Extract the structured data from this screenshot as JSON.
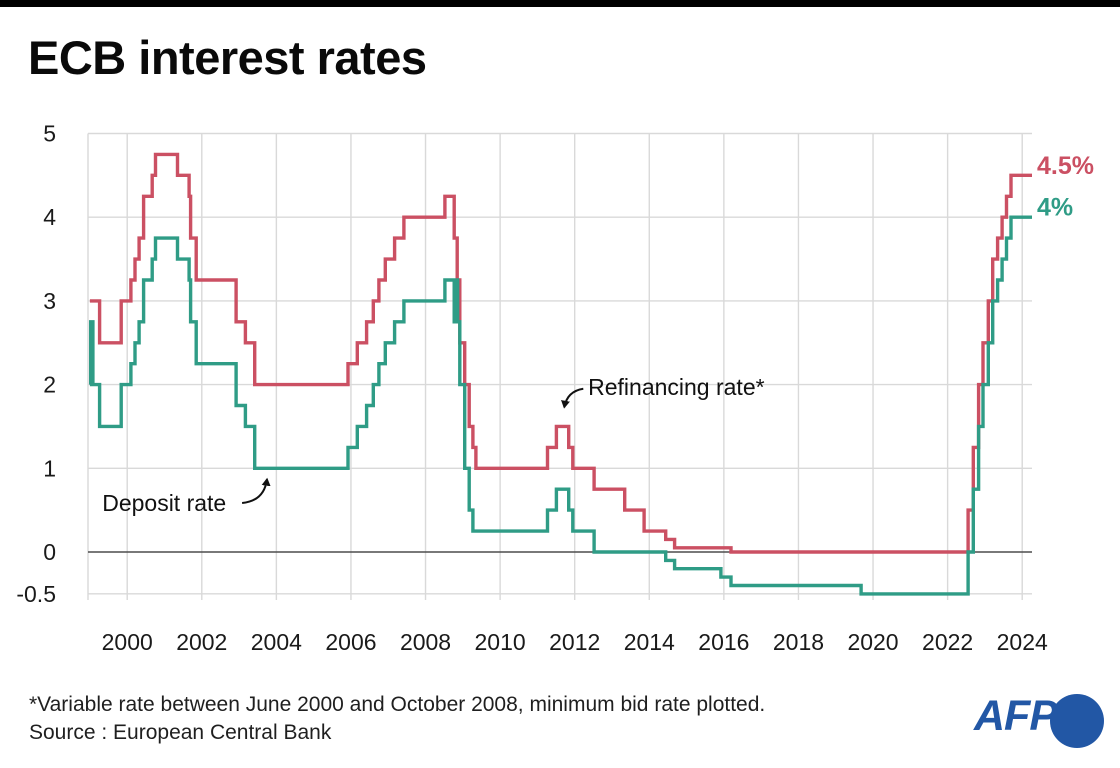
{
  "page": {
    "title": "ECB interest rates"
  },
  "footer": {
    "footnote": "*Variable rate between June 2000 and October 2008, minimum bid rate plotted.",
    "source": "Source : European Central Bank",
    "logo_text": "AFP"
  },
  "colors": {
    "refinancing_line": "#cb5063",
    "deposit_line": "#2f9c86",
    "grid": "#d9d9d9",
    "zero_line": "#4d4d4d",
    "axis_text": "#1a1a1a",
    "annotation_text": "#111111",
    "afp_blue": "#2257a5",
    "top_bar": "#000000"
  },
  "chart_data": {
    "type": "line",
    "step": true,
    "title": "ECB interest rates",
    "x_ticks": [
      2000,
      2002,
      2004,
      2006,
      2008,
      2010,
      2012,
      2014,
      2016,
      2018,
      2020,
      2022,
      2024
    ],
    "y_ticks": [
      5,
      4,
      3,
      2,
      1,
      0,
      -0.5
    ],
    "xlim": [
      1998.95,
      2024.3
    ],
    "ylim": [
      -0.6,
      5
    ],
    "grid": true,
    "legend_position": "none",
    "series": [
      {
        "name": "Refinancing rate*",
        "color": "#cb5063",
        "end_label": "4.5%",
        "points": [
          [
            1999.0,
            3.0
          ],
          [
            1999.26,
            2.5
          ],
          [
            1999.84,
            3.0
          ],
          [
            2000.1,
            3.25
          ],
          [
            2000.21,
            3.5
          ],
          [
            2000.32,
            3.75
          ],
          [
            2000.44,
            4.25
          ],
          [
            2000.67,
            4.5
          ],
          [
            2000.76,
            4.75
          ],
          [
            2001.35,
            4.5
          ],
          [
            2001.66,
            4.25
          ],
          [
            2001.7,
            3.75
          ],
          [
            2001.85,
            3.25
          ],
          [
            2002.92,
            2.75
          ],
          [
            2003.17,
            2.5
          ],
          [
            2003.42,
            2.0
          ],
          [
            2005.92,
            2.25
          ],
          [
            2006.17,
            2.5
          ],
          [
            2006.42,
            2.75
          ],
          [
            2006.6,
            3.0
          ],
          [
            2006.75,
            3.25
          ],
          [
            2006.92,
            3.5
          ],
          [
            2007.17,
            3.75
          ],
          [
            2007.42,
            4.0
          ],
          [
            2008.52,
            4.25
          ],
          [
            2008.77,
            3.75
          ],
          [
            2008.85,
            3.25
          ],
          [
            2008.92,
            2.5
          ],
          [
            2009.05,
            2.0
          ],
          [
            2009.17,
            1.5
          ],
          [
            2009.27,
            1.25
          ],
          [
            2009.35,
            1.0
          ],
          [
            2011.27,
            1.25
          ],
          [
            2011.51,
            1.5
          ],
          [
            2011.84,
            1.25
          ],
          [
            2011.95,
            1.0
          ],
          [
            2012.52,
            0.75
          ],
          [
            2013.34,
            0.5
          ],
          [
            2013.86,
            0.25
          ],
          [
            2014.44,
            0.15
          ],
          [
            2014.68,
            0.05
          ],
          [
            2016.19,
            0.0
          ],
          [
            2022.55,
            0.5
          ],
          [
            2022.69,
            1.25
          ],
          [
            2022.83,
            2.0
          ],
          [
            2022.95,
            2.5
          ],
          [
            2023.09,
            3.0
          ],
          [
            2023.21,
            3.5
          ],
          [
            2023.34,
            3.75
          ],
          [
            2023.46,
            4.0
          ],
          [
            2023.58,
            4.25
          ],
          [
            2023.7,
            4.5
          ]
        ]
      },
      {
        "name": "Deposit rate",
        "color": "#2f9c86",
        "end_label": "4%",
        "points": [
          [
            1999.0,
            2.0
          ],
          [
            1999.02,
            2.75
          ],
          [
            1999.08,
            2.0
          ],
          [
            1999.26,
            1.5
          ],
          [
            1999.84,
            2.0
          ],
          [
            2000.1,
            2.25
          ],
          [
            2000.21,
            2.5
          ],
          [
            2000.32,
            2.75
          ],
          [
            2000.44,
            3.25
          ],
          [
            2000.67,
            3.5
          ],
          [
            2000.76,
            3.75
          ],
          [
            2001.35,
            3.5
          ],
          [
            2001.66,
            3.25
          ],
          [
            2001.7,
            2.75
          ],
          [
            2001.85,
            2.25
          ],
          [
            2002.92,
            1.75
          ],
          [
            2003.17,
            1.5
          ],
          [
            2003.42,
            1.0
          ],
          [
            2005.92,
            1.25
          ],
          [
            2006.17,
            1.5
          ],
          [
            2006.42,
            1.75
          ],
          [
            2006.6,
            2.0
          ],
          [
            2006.75,
            2.25
          ],
          [
            2006.92,
            2.5
          ],
          [
            2007.17,
            2.75
          ],
          [
            2007.42,
            3.0
          ],
          [
            2008.52,
            3.25
          ],
          [
            2008.77,
            2.75
          ],
          [
            2008.79,
            3.25
          ],
          [
            2008.86,
            2.75
          ],
          [
            2008.92,
            2.0
          ],
          [
            2009.05,
            1.0
          ],
          [
            2009.17,
            0.5
          ],
          [
            2009.27,
            0.25
          ],
          [
            2011.27,
            0.5
          ],
          [
            2011.51,
            0.75
          ],
          [
            2011.84,
            0.5
          ],
          [
            2011.95,
            0.25
          ],
          [
            2012.52,
            0.0
          ],
          [
            2014.44,
            -0.1
          ],
          [
            2014.68,
            -0.2
          ],
          [
            2015.92,
            -0.3
          ],
          [
            2016.19,
            -0.4
          ],
          [
            2019.68,
            -0.5
          ],
          [
            2022.55,
            0.0
          ],
          [
            2022.69,
            0.75
          ],
          [
            2022.83,
            1.5
          ],
          [
            2022.95,
            2.0
          ],
          [
            2023.09,
            2.5
          ],
          [
            2023.21,
            3.0
          ],
          [
            2023.34,
            3.25
          ],
          [
            2023.46,
            3.5
          ],
          [
            2023.58,
            3.75
          ],
          [
            2023.7,
            4.0
          ]
        ]
      }
    ],
    "annotations": [
      {
        "text": "Deposit rate",
        "label": {
          "year": 1999.33,
          "value": 0.49
        },
        "arrow": {
          "from": {
            "year": 2003.08,
            "value": 0.585
          },
          "ctrl": {
            "year": 2003.67,
            "value": 0.61
          },
          "tip": {
            "year": 2003.75,
            "value": 0.87
          }
        }
      },
      {
        "text": "Refinancing rate*",
        "label": {
          "year": 2012.36,
          "value": 1.876
        },
        "arrow": {
          "from": {
            "year": 2012.23,
            "value": 1.95
          },
          "ctrl": {
            "year": 2011.8,
            "value": 1.92
          },
          "tip": {
            "year": 2011.72,
            "value": 1.73
          }
        }
      }
    ]
  }
}
